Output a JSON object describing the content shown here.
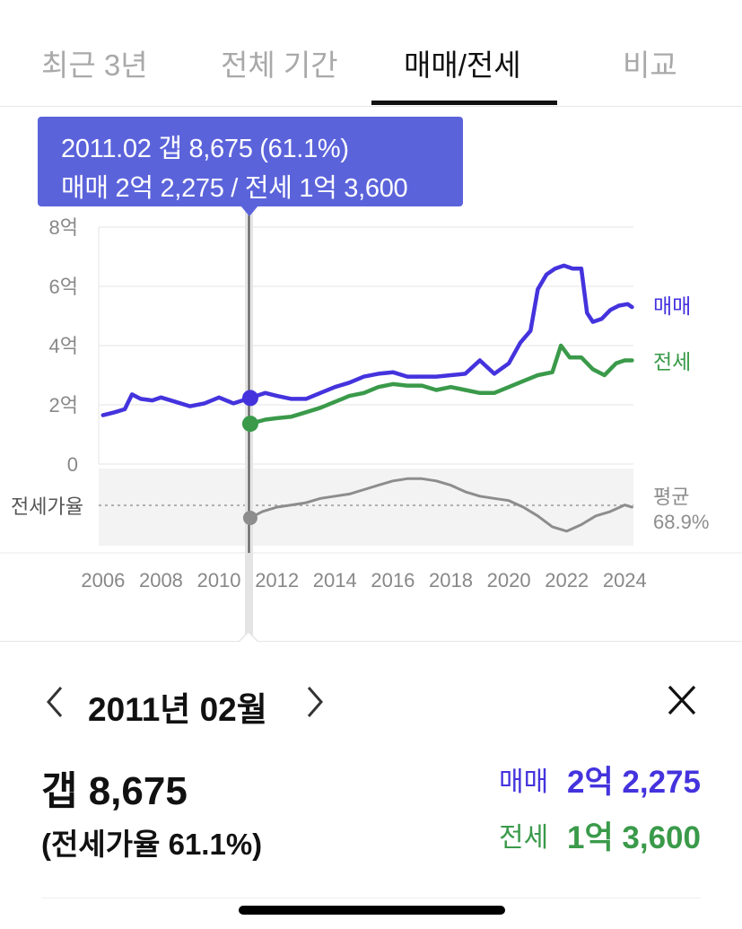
{
  "tabs": [
    {
      "label": "최근 3년",
      "active": false
    },
    {
      "label": "전체 기간",
      "active": false
    },
    {
      "label": "매매/전세",
      "active": true
    },
    {
      "label": "비교",
      "active": false
    }
  ],
  "tooltip": {
    "line1": "2011.02  갭 8,675 (61.1%)",
    "line2": "매매 2억 2,275 / 전세 1억 3,600"
  },
  "chart_data": {
    "type": "line",
    "x_range": [
      2005.85,
      2024.3
    ],
    "y_ticks": [
      "8억",
      "6억",
      "4억",
      "2억",
      "0"
    ],
    "y_tick_values": [
      8,
      6,
      4,
      2,
      0
    ],
    "x_ticks": [
      2006,
      2008,
      2010,
      2012,
      2014,
      2016,
      2018,
      2020,
      2022,
      2024
    ],
    "ylim": [
      0,
      8
    ],
    "y_unit": "억",
    "grid": true,
    "selected_x": 2011.08,
    "series": [
      {
        "name": "매매",
        "color": "#4433dd",
        "x": [
          2006.0,
          2006.4,
          2006.75,
          2007.0,
          2007.3,
          2007.7,
          2008.0,
          2008.5,
          2009.0,
          2009.5,
          2010.0,
          2010.5,
          2011.08,
          2011.6,
          2012.0,
          2012.5,
          2013.0,
          2013.5,
          2014.0,
          2014.5,
          2015.0,
          2015.5,
          2016.0,
          2016.5,
          2017.0,
          2017.5,
          2018.0,
          2018.5,
          2019.0,
          2019.5,
          2020.0,
          2020.4,
          2020.75,
          2021.0,
          2021.3,
          2021.6,
          2021.9,
          2022.2,
          2022.5,
          2022.7,
          2022.9,
          2023.2,
          2023.5,
          2023.8,
          2024.1,
          2024.25
        ],
        "values": [
          1.65,
          1.75,
          1.85,
          2.35,
          2.2,
          2.15,
          2.25,
          2.1,
          1.95,
          2.05,
          2.25,
          2.05,
          2.23,
          2.4,
          2.3,
          2.2,
          2.2,
          2.4,
          2.6,
          2.75,
          2.95,
          3.05,
          3.1,
          2.95,
          2.95,
          2.95,
          3.0,
          3.05,
          3.5,
          3.05,
          3.4,
          4.1,
          4.5,
          5.9,
          6.4,
          6.6,
          6.7,
          6.6,
          6.6,
          5.1,
          4.8,
          4.9,
          5.2,
          5.35,
          5.4,
          5.3
        ]
      },
      {
        "name": "전세",
        "color": "#3a9a4a",
        "x": [
          2011.08,
          2011.6,
          2012.0,
          2012.5,
          2013.0,
          2013.5,
          2014.0,
          2014.5,
          2015.0,
          2015.5,
          2016.0,
          2016.5,
          2017.0,
          2017.5,
          2018.0,
          2018.5,
          2019.0,
          2019.5,
          2020.0,
          2020.5,
          2021.0,
          2021.5,
          2021.8,
          2022.1,
          2022.5,
          2022.9,
          2023.3,
          2023.7,
          2024.0,
          2024.25
        ],
        "values": [
          1.36,
          1.5,
          1.55,
          1.6,
          1.75,
          1.9,
          2.1,
          2.3,
          2.4,
          2.6,
          2.7,
          2.65,
          2.65,
          2.5,
          2.6,
          2.5,
          2.4,
          2.4,
          2.6,
          2.8,
          3.0,
          3.1,
          4.0,
          3.6,
          3.6,
          3.2,
          3.0,
          3.4,
          3.5,
          3.5
        ]
      },
      {
        "name": "전세가율",
        "color": "#8d8d8d",
        "avg_label": "평균",
        "avg_value": "68.9%",
        "x": [
          2011.08,
          2011.5,
          2012.0,
          2012.5,
          2013.0,
          2013.5,
          2014.0,
          2014.5,
          2015.0,
          2015.5,
          2016.0,
          2016.5,
          2017.0,
          2017.5,
          2018.0,
          2018.5,
          2019.0,
          2019.5,
          2020.0,
          2020.5,
          2021.0,
          2021.5,
          2022.0,
          2022.5,
          2023.0,
          2023.5,
          2024.0,
          2024.25
        ],
        "values": [
          61.1,
          64,
          66,
          67,
          68,
          70,
          71,
          72,
          74,
          76,
          78,
          79,
          79,
          78,
          76,
          73,
          71,
          70,
          69,
          66,
          62,
          57,
          55,
          58,
          62,
          64,
          67,
          66
        ]
      }
    ]
  },
  "ratio_label": "전세가율",
  "detail": {
    "date": "2011년 02월",
    "gap": "갭 8,675",
    "ratio": "(전세가율 61.1%)",
    "sale_label": "매매",
    "sale_value": "2억 2,275",
    "jeonse_label": "전세",
    "jeonse_value": "1억 3,600"
  }
}
